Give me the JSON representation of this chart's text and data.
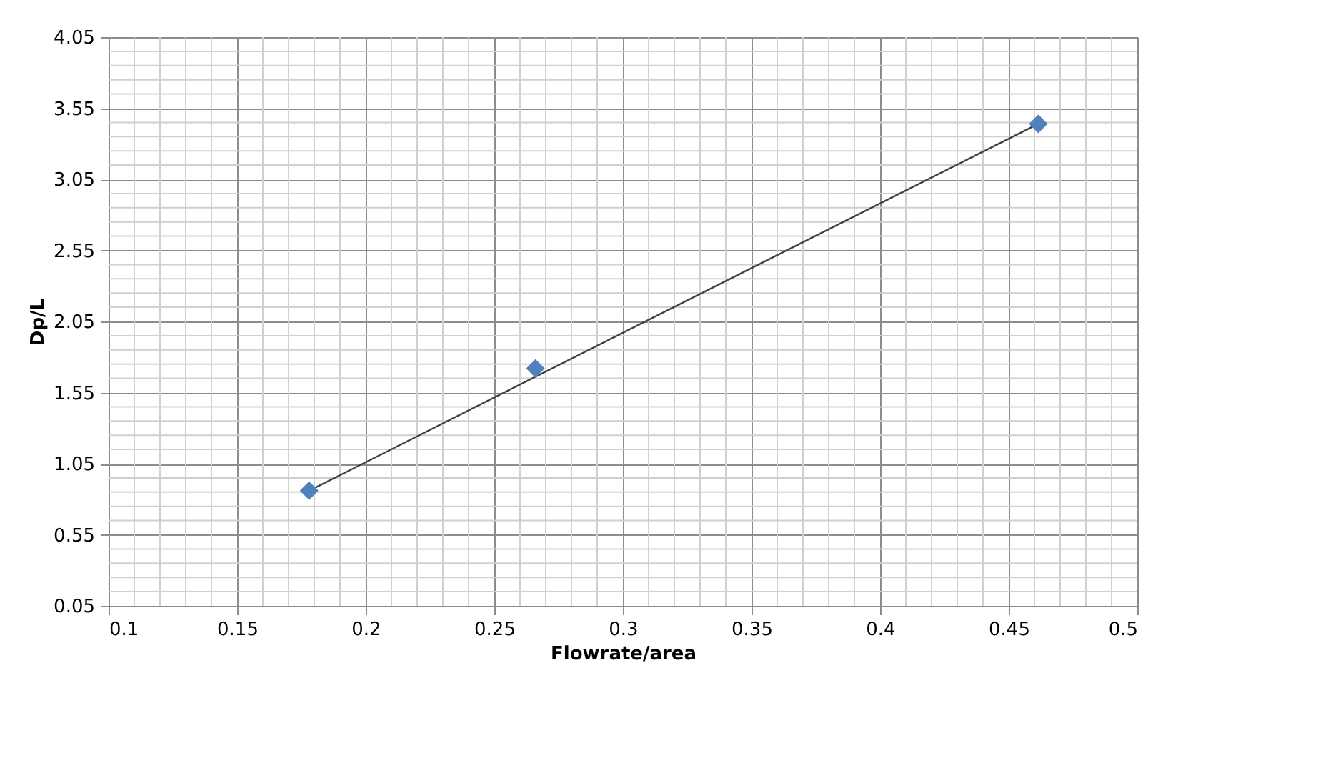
{
  "chart_data": {
    "type": "scatter",
    "xlabel": "Flowrate/area",
    "ylabel": "Dp/L",
    "xlim": [
      0.1,
      0.5
    ],
    "xticks": [
      0.1,
      0.15,
      0.2,
      0.25,
      0.3,
      0.35,
      0.4,
      0.45,
      0.5
    ],
    "ylim": [
      0.05,
      4.05
    ],
    "yticks": [
      0.05,
      0.55,
      1.05,
      1.55,
      2.05,
      2.55,
      3.05,
      3.55,
      4.05
    ],
    "grid": true,
    "series": [
      {
        "color": "#4f81bd",
        "marker": "diamond",
        "x": [
          0.178,
          0.266,
          0.4615
        ],
        "values": [
          0.86,
          1.72,
          3.44
        ]
      },
      {
        "type": "line",
        "color": "#404040",
        "line_style": "solid",
        "x": [
          0.178,
          0.4615
        ],
        "values": [
          0.86,
          3.44
        ]
      }
    ]
  }
}
